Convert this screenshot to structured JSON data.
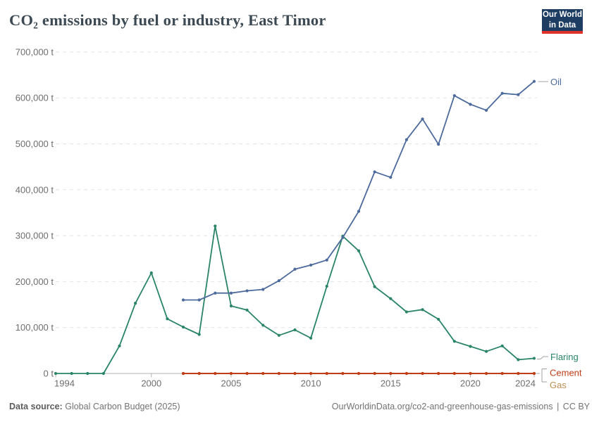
{
  "header": {
    "title": "CO₂ emissions by fuel or industry, East Timor",
    "logo": {
      "line1": "Our World",
      "line2": "in Data"
    }
  },
  "footer": {
    "source_label": "Data source:",
    "source_value": "Global Carbon Budget (2025)",
    "link": "OurWorldinData.org/co2-and-greenhouse-gas-emissions",
    "separator": "|",
    "license": "CC BY"
  },
  "colors": {
    "oil": "#4c6a9c",
    "flaring": "#2a8565",
    "cement": "#c03d18",
    "gas": "#bc8e54",
    "axis_text": "#6e6e6e",
    "gridline": "#e2e2e2",
    "axis_line": "#b3b3b3",
    "connector": "#a3a3a3",
    "logo_bg": "#1d3d63",
    "logo_bar": "#e0322b"
  },
  "chart_data": {
    "type": "line",
    "title": "CO₂ emissions by fuel or industry, East Timor",
    "xlabel": "",
    "ylabel": "",
    "unit": "t",
    "ylim": [
      0,
      700000
    ],
    "ytick_step": 100000,
    "ytick_labels": [
      "0 t",
      "100,000 t",
      "200,000 t",
      "300,000 t",
      "400,000 t",
      "500,000 t",
      "600,000 t",
      "700,000 t"
    ],
    "xlim": [
      1994,
      2024
    ],
    "xticks": [
      1994,
      2000,
      2005,
      2010,
      2015,
      2020,
      2024
    ],
    "grid": "horizontal-dashed",
    "legend_position": "right-of-line-ends",
    "series": [
      {
        "name": "Oil",
        "color": "#4c6a9c",
        "x": [
          2002,
          2003,
          2004,
          2005,
          2006,
          2007,
          2008,
          2009,
          2010,
          2011,
          2012,
          2013,
          2014,
          2015,
          2016,
          2017,
          2018,
          2019,
          2020,
          2021,
          2022,
          2023,
          2024
        ],
        "values": [
          160000,
          160000,
          175000,
          175000,
          180000,
          183000,
          202000,
          227000,
          236000,
          247000,
          296000,
          353000,
          439000,
          427000,
          509000,
          554000,
          499000,
          605000,
          586000,
          573000,
          610000,
          607000,
          636000
        ]
      },
      {
        "name": "Flaring",
        "color": "#2a8565",
        "x": [
          1994,
          1995,
          1996,
          1997,
          1998,
          1999,
          2000,
          2001,
          2002,
          2003,
          2004,
          2005,
          2006,
          2007,
          2008,
          2009,
          2010,
          2011,
          2012,
          2013,
          2014,
          2015,
          2016,
          2017,
          2018,
          2019,
          2020,
          2021,
          2022,
          2023,
          2024
        ],
        "values": [
          0,
          0,
          0,
          0,
          60000,
          153000,
          219000,
          119000,
          101000,
          85000,
          321000,
          147000,
          138000,
          105000,
          83000,
          95000,
          77000,
          190000,
          299000,
          267000,
          189000,
          163000,
          134000,
          139000,
          118000,
          70000,
          59000,
          48000,
          60000,
          30000,
          33000
        ]
      },
      {
        "name": "Cement",
        "color": "#c03d18",
        "x": [
          2002,
          2003,
          2004,
          2005,
          2006,
          2007,
          2008,
          2009,
          2010,
          2011,
          2012,
          2013,
          2014,
          2015,
          2016,
          2017,
          2018,
          2019,
          2020,
          2021,
          2022,
          2023,
          2024
        ],
        "values": [
          0,
          0,
          0,
          0,
          0,
          0,
          0,
          0,
          0,
          0,
          0,
          0,
          0,
          0,
          0,
          0,
          0,
          0,
          0,
          0,
          0,
          0,
          0
        ]
      },
      {
        "name": "Gas",
        "color": "#bc8e54",
        "x": [
          2002,
          2003,
          2004,
          2005,
          2006,
          2007,
          2008,
          2009,
          2010,
          2011,
          2012,
          2013,
          2014,
          2015,
          2016,
          2017,
          2018,
          2019,
          2020,
          2021,
          2022,
          2023,
          2024
        ],
        "values": [
          0,
          0,
          0,
          0,
          0,
          0,
          0,
          0,
          0,
          0,
          0,
          0,
          0,
          0,
          0,
          0,
          0,
          0,
          0,
          0,
          0,
          0,
          0
        ]
      }
    ],
    "legend_labels": [
      "Oil",
      "Flaring",
      "Cement",
      "Gas"
    ]
  }
}
